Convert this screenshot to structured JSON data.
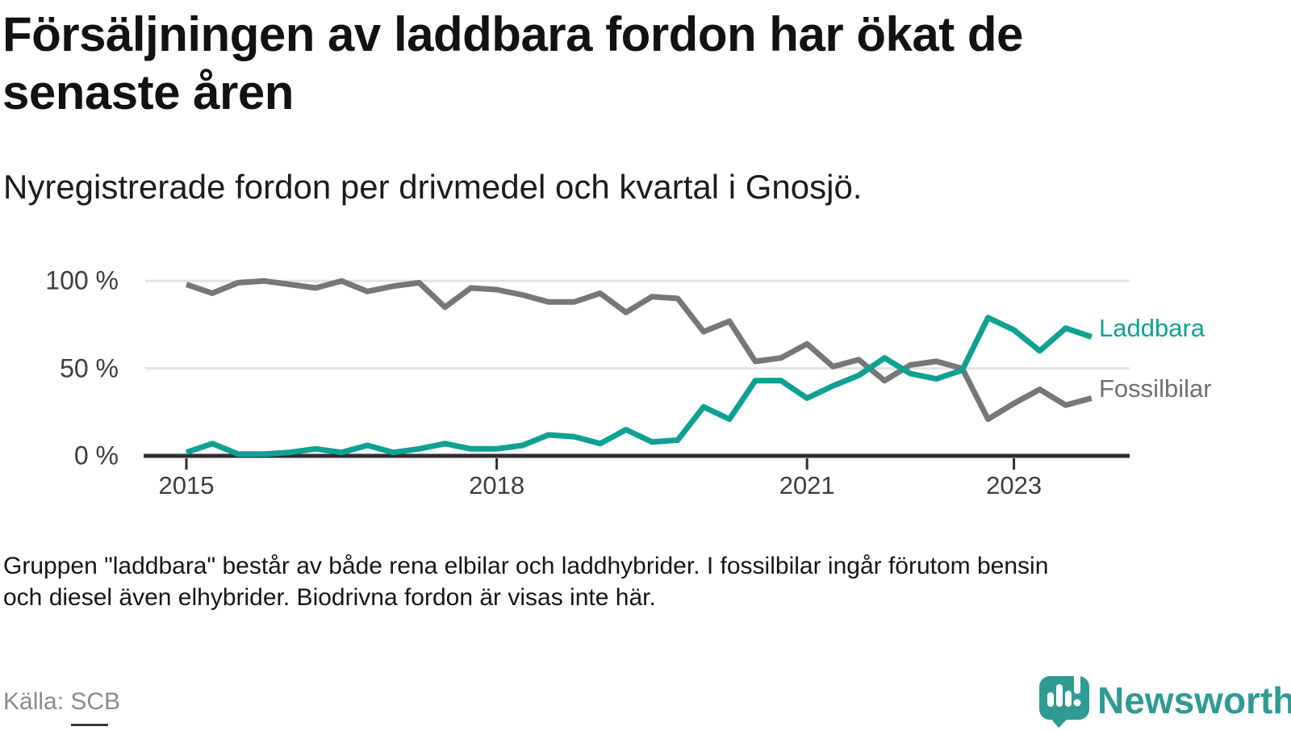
{
  "header": {
    "title_lines": [
      "Försäljningen av laddbara fordon har ökat de",
      "senaste åren"
    ],
    "subtitle": "Nyregistrerade fordon per drivmedel och kvartal i Gnosjö."
  },
  "chart_data": {
    "type": "line",
    "x_unit": "quarter",
    "x_range": [
      "2015-Q1",
      "2023-Q4"
    ],
    "ylim": [
      0,
      100
    ],
    "grid": "horizontal",
    "legend_position": "right-of-line-end",
    "y_ticks": [
      {
        "label": "0 %",
        "value": 0
      },
      {
        "label": "50 %",
        "value": 50
      },
      {
        "label": "100 %",
        "value": 100
      }
    ],
    "x_ticks": [
      {
        "label": "2015",
        "index": 0
      },
      {
        "label": "2018",
        "index": 12
      },
      {
        "label": "2021",
        "index": 24
      },
      {
        "label": "2023",
        "index": 32
      }
    ],
    "series": [
      {
        "name": "Fossilbilar",
        "color": "#76767b",
        "label_color": "#6f6f74",
        "values": [
          98,
          93,
          99,
          100,
          98,
          96,
          100,
          94,
          97,
          99,
          85,
          96,
          95,
          92,
          88,
          88,
          93,
          82,
          91,
          90,
          71,
          77,
          54,
          56,
          64,
          51,
          55,
          43,
          52,
          54,
          50,
          21,
          30,
          38,
          29,
          33
        ]
      },
      {
        "name": "Laddbara",
        "color": "#0fa191",
        "label_color": "#0fa191",
        "values": [
          2,
          7,
          1,
          1,
          2,
          4,
          2,
          6,
          2,
          4,
          7,
          4,
          4,
          6,
          12,
          11,
          7,
          15,
          8,
          9,
          28,
          21,
          43,
          43,
          33,
          40,
          46,
          56,
          47,
          44,
          49,
          79,
          72,
          60,
          73,
          68
        ]
      }
    ],
    "axis_color": "#2f2f33",
    "gridline_color": "#e3e3e3",
    "tick_label_color": "#3d3d3d"
  },
  "footnote": {
    "lines": [
      "Gruppen \"laddbara\" består av både rena elbilar och laddhybrider. I fossilbilar ingår förutom bensin",
      "och diesel även elhybrider. Biodrivna fordon är visas inte här."
    ]
  },
  "source": "Källa: SCB",
  "brand": {
    "name": "Newsworthy",
    "color": "#2f9b93"
  }
}
